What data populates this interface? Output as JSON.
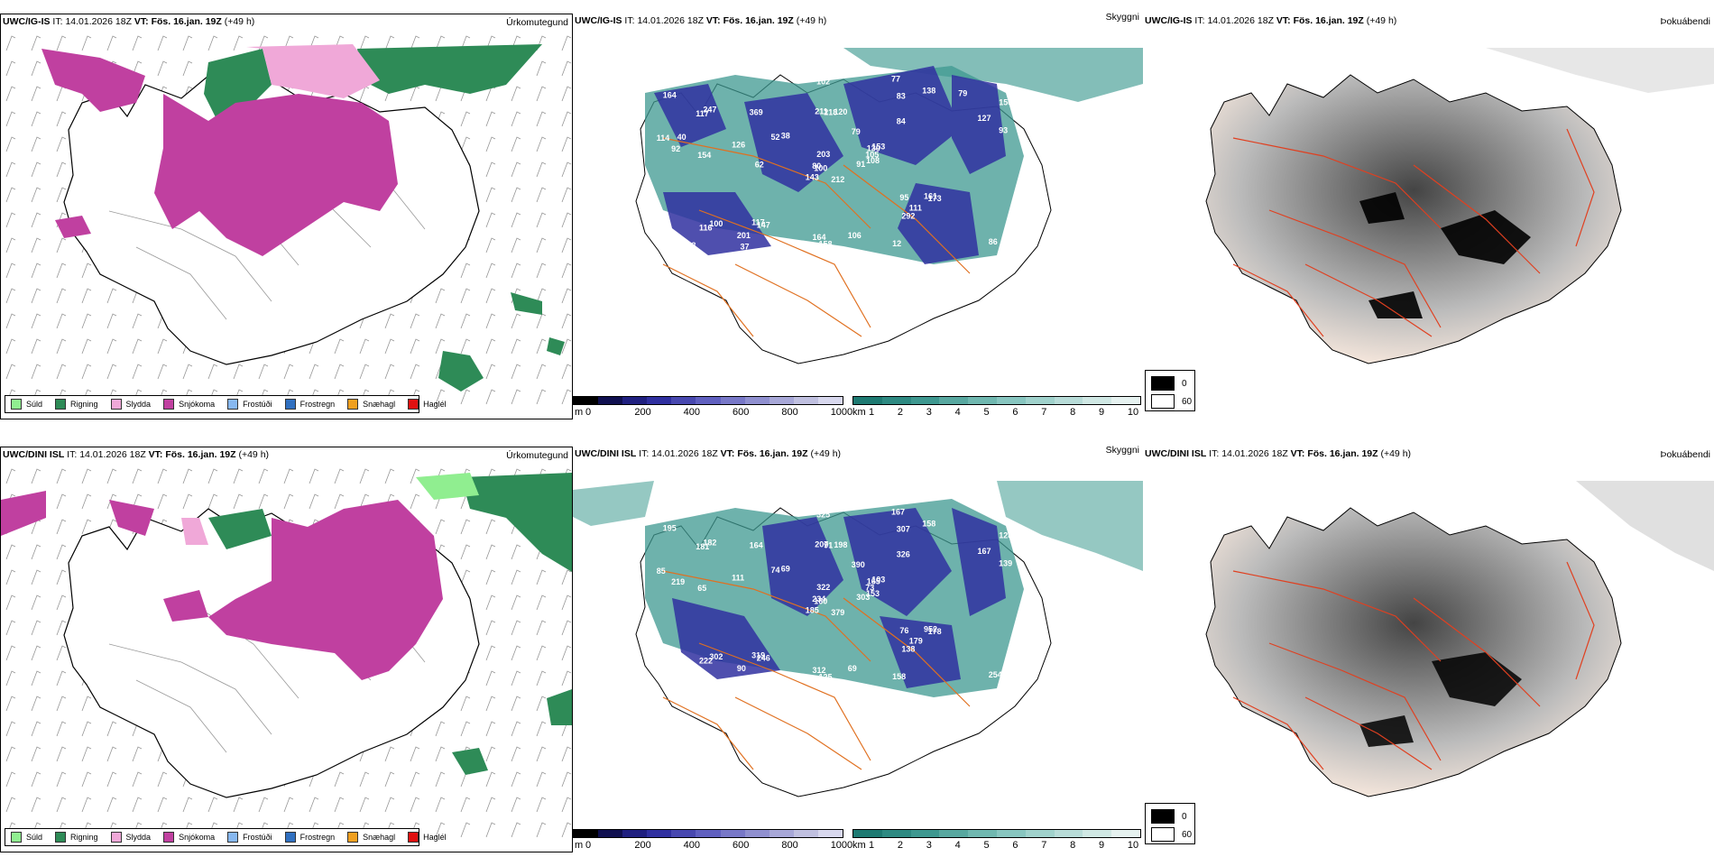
{
  "rows": [
    {
      "model": "UWC/IG-IS",
      "it_label": "IT:",
      "it_value": "14.01.2026 18Z",
      "vt_label": "VT:",
      "vt_value": "Fös. 16.jan. 19Z",
      "lead": "(+49 h)"
    },
    {
      "model": "UWC/DINI ISL",
      "it_label": "IT:",
      "it_value": "14.01.2026 18Z",
      "vt_label": "VT:",
      "vt_value": "Fös. 16.jan. 19Z",
      "lead": "(+49 h)"
    }
  ],
  "titles": {
    "precip": "Úrkomutegund",
    "cloud": "Skyggni",
    "fog": "Þokuábendi"
  },
  "precip_legend": [
    {
      "label": "Súld",
      "color": "#90ee90"
    },
    {
      "label": "Rigning",
      "color": "#2e8b57"
    },
    {
      "label": "Slydda",
      "color": "#f0a8d8"
    },
    {
      "label": "Snjókoma",
      "color": "#c040a0"
    },
    {
      "label": "Frostúði",
      "color": "#87b8f0"
    },
    {
      "label": "Frostregn",
      "color": "#3070c0"
    },
    {
      "label": "Snæhagl",
      "color": "#f0a020"
    },
    {
      "label": "Haglél",
      "color": "#e01010"
    }
  ],
  "cloudbase_scale": {
    "unit": "m",
    "ticks": [
      "0",
      "200",
      "400",
      "600",
      "800",
      "1000"
    ],
    "colors": [
      "#000000",
      "#101050",
      "#202080",
      "#3030a0",
      "#4848b0",
      "#6060c0",
      "#7878c8",
      "#9090d0",
      "#a8a8d8",
      "#c0c0e0",
      "#d8d8ee"
    ]
  },
  "visibility_scale": {
    "unit": "km",
    "ticks": [
      "1",
      "2",
      "3",
      "4",
      "5",
      "6",
      "7",
      "8",
      "9",
      "10"
    ],
    "colors": [
      "#1e7a72",
      "#2e8a82",
      "#3e9890",
      "#58a8a0",
      "#70b8b0",
      "#88c6c0",
      "#a0d2cc",
      "#b8dcd8",
      "#d0e8e4",
      "#e6f2f0"
    ]
  },
  "fog_legend": [
    {
      "label": "0",
      "color": "#000000"
    },
    {
      "label": "60",
      "color": "#ffffff"
    }
  ],
  "cloud_labels_top": [
    "212",
    "117",
    "100",
    "188",
    "130",
    "147",
    "77",
    "120",
    "83",
    "91",
    "68",
    "66",
    "154",
    "156",
    "143",
    "84",
    "93",
    "211",
    "79",
    "100",
    "38",
    "142",
    "37",
    "218",
    "153",
    "173",
    "247",
    "102",
    "92",
    "95",
    "93",
    "80",
    "164",
    "203",
    "369",
    "138",
    "117",
    "116",
    "86",
    "161",
    "226",
    "52",
    "126",
    "292",
    "143",
    "114",
    "105",
    "151",
    "158",
    "108",
    "116",
    "127",
    "164",
    "111",
    "12",
    "201",
    "85",
    "19",
    "106",
    "79",
    "33",
    "62",
    "40"
  ],
  "cloud_labels_bottom": [
    "379",
    "181",
    "160",
    "129",
    "165",
    "246",
    "167",
    "198",
    "307",
    "303",
    "489",
    "91",
    "65",
    "128",
    "185",
    "326",
    "213",
    "207",
    "390",
    "302",
    "69",
    "108",
    "59",
    "91",
    "103",
    "178",
    "182",
    "325",
    "219",
    "76",
    "139",
    "234",
    "312",
    "322",
    "164",
    "158",
    "319",
    "284",
    "254",
    "952",
    "93",
    "74",
    "111",
    "138",
    "203",
    "85",
    "73",
    "108",
    "125",
    "153",
    "222",
    "167",
    "195",
    "179",
    "158",
    "90",
    "159",
    "59",
    "69"
  ]
}
